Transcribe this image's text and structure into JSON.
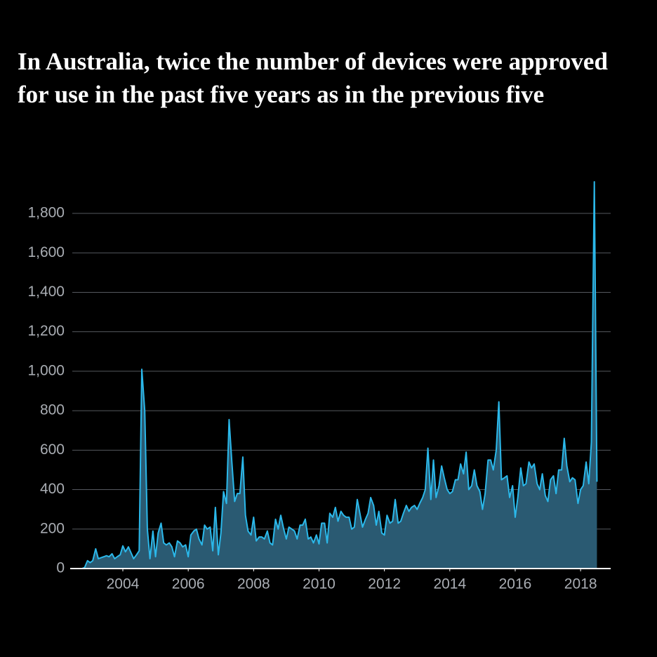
{
  "chart_data": {
    "type": "area",
    "title": "In Australia, twice the number of devices were approved for use in the past five years as in the previous five",
    "x": [
      2002.75,
      2002.83,
      2002.92,
      2003,
      2003.08,
      2003.17,
      2003.25,
      2003.33,
      2003.42,
      2003.5,
      2003.58,
      2003.67,
      2003.75,
      2003.83,
      2003.92,
      2004,
      2004.08,
      2004.17,
      2004.25,
      2004.33,
      2004.42,
      2004.5,
      2004.58,
      2004.67,
      2004.75,
      2004.83,
      2004.92,
      2005,
      2005.08,
      2005.17,
      2005.25,
      2005.33,
      2005.42,
      2005.5,
      2005.58,
      2005.67,
      2005.75,
      2005.83,
      2005.92,
      2006,
      2006.08,
      2006.17,
      2006.25,
      2006.33,
      2006.42,
      2006.5,
      2006.58,
      2006.67,
      2006.75,
      2006.83,
      2006.92,
      2007,
      2007.08,
      2007.17,
      2007.25,
      2007.33,
      2007.42,
      2007.5,
      2007.58,
      2007.67,
      2007.75,
      2007.83,
      2007.92,
      2008,
      2008.08,
      2008.17,
      2008.25,
      2008.33,
      2008.42,
      2008.5,
      2008.58,
      2008.67,
      2008.75,
      2008.83,
      2008.92,
      2009,
      2009.08,
      2009.17,
      2009.25,
      2009.33,
      2009.42,
      2009.5,
      2009.58,
      2009.67,
      2009.75,
      2009.83,
      2009.92,
      2010,
      2010.08,
      2010.17,
      2010.25,
      2010.33,
      2010.42,
      2010.5,
      2010.58,
      2010.67,
      2010.75,
      2010.83,
      2010.92,
      2011,
      2011.08,
      2011.17,
      2011.25,
      2011.33,
      2011.42,
      2011.5,
      2011.58,
      2011.67,
      2011.75,
      2011.83,
      2011.92,
      2012,
      2012.08,
      2012.17,
      2012.25,
      2012.33,
      2012.42,
      2012.5,
      2012.58,
      2012.67,
      2012.75,
      2012.83,
      2012.92,
      2013,
      2013.08,
      2013.17,
      2013.25,
      2013.33,
      2013.42,
      2013.5,
      2013.58,
      2013.67,
      2013.75,
      2013.83,
      2013.92,
      2014,
      2014.08,
      2014.17,
      2014.25,
      2014.33,
      2014.42,
      2014.5,
      2014.58,
      2014.67,
      2014.75,
      2014.83,
      2014.92,
      2015,
      2015.08,
      2015.17,
      2015.25,
      2015.33,
      2015.42,
      2015.5,
      2015.58,
      2015.67,
      2015.75,
      2015.83,
      2015.92,
      2016,
      2016.08,
      2016.17,
      2016.25,
      2016.33,
      2016.42,
      2016.5,
      2016.58,
      2016.67,
      2016.75,
      2016.83,
      2016.92,
      2017,
      2017.08,
      2017.17,
      2017.25,
      2017.33,
      2017.42,
      2017.5,
      2017.58,
      2017.67,
      2017.75,
      2017.83,
      2017.92,
      2018,
      2018.08,
      2018.17,
      2018.25,
      2018.33,
      2018.42,
      2018.5
    ],
    "values": [
      0,
      5,
      40,
      30,
      40,
      100,
      50,
      55,
      60,
      65,
      60,
      75,
      50,
      60,
      70,
      115,
      85,
      110,
      80,
      50,
      70,
      90,
      1010,
      800,
      200,
      50,
      190,
      60,
      180,
      230,
      130,
      120,
      130,
      110,
      60,
      140,
      130,
      110,
      120,
      60,
      170,
      190,
      200,
      150,
      120,
      220,
      200,
      210,
      90,
      310,
      70,
      180,
      390,
      330,
      755,
      550,
      340,
      380,
      380,
      565,
      270,
      190,
      170,
      260,
      140,
      160,
      160,
      150,
      190,
      130,
      120,
      250,
      200,
      270,
      200,
      150,
      210,
      200,
      190,
      150,
      220,
      220,
      250,
      150,
      160,
      130,
      170,
      125,
      230,
      230,
      130,
      280,
      260,
      310,
      240,
      290,
      270,
      260,
      260,
      200,
      210,
      350,
      280,
      210,
      250,
      280,
      360,
      320,
      220,
      290,
      180,
      170,
      270,
      230,
      240,
      350,
      230,
      240,
      280,
      320,
      290,
      310,
      320,
      300,
      330,
      360,
      400,
      610,
      350,
      550,
      360,
      420,
      520,
      460,
      400,
      380,
      390,
      450,
      450,
      530,
      480,
      590,
      400,
      420,
      500,
      420,
      390,
      300,
      380,
      550,
      550,
      500,
      600,
      845,
      450,
      460,
      470,
      360,
      420,
      260,
      360,
      510,
      420,
      430,
      540,
      510,
      530,
      430,
      400,
      480,
      370,
      340,
      450,
      470,
      380,
      500,
      500,
      660,
      520,
      440,
      460,
      450,
      330,
      400,
      420,
      540,
      430,
      640,
      1960,
      440
    ],
    "line_color": "#2bb8ea",
    "fill_color": "#2a5a72",
    "xlim": [
      2002.39,
      2018.92
    ],
    "xticks": [
      2004,
      2006,
      2008,
      2010,
      2012,
      2014,
      2016,
      2018
    ],
    "ylim": [
      0,
      1800
    ],
    "yticks": [
      0,
      200,
      400,
      600,
      800,
      {
        "value": 1000,
        "label": "1,000"
      },
      {
        "value": 1200,
        "label": "1,200"
      },
      {
        "value": 1400,
        "label": "1,400"
      },
      {
        "value": 1600,
        "label": "1,600"
      },
      {
        "value": 1800,
        "label": "1,800"
      }
    ],
    "grid": true
  }
}
